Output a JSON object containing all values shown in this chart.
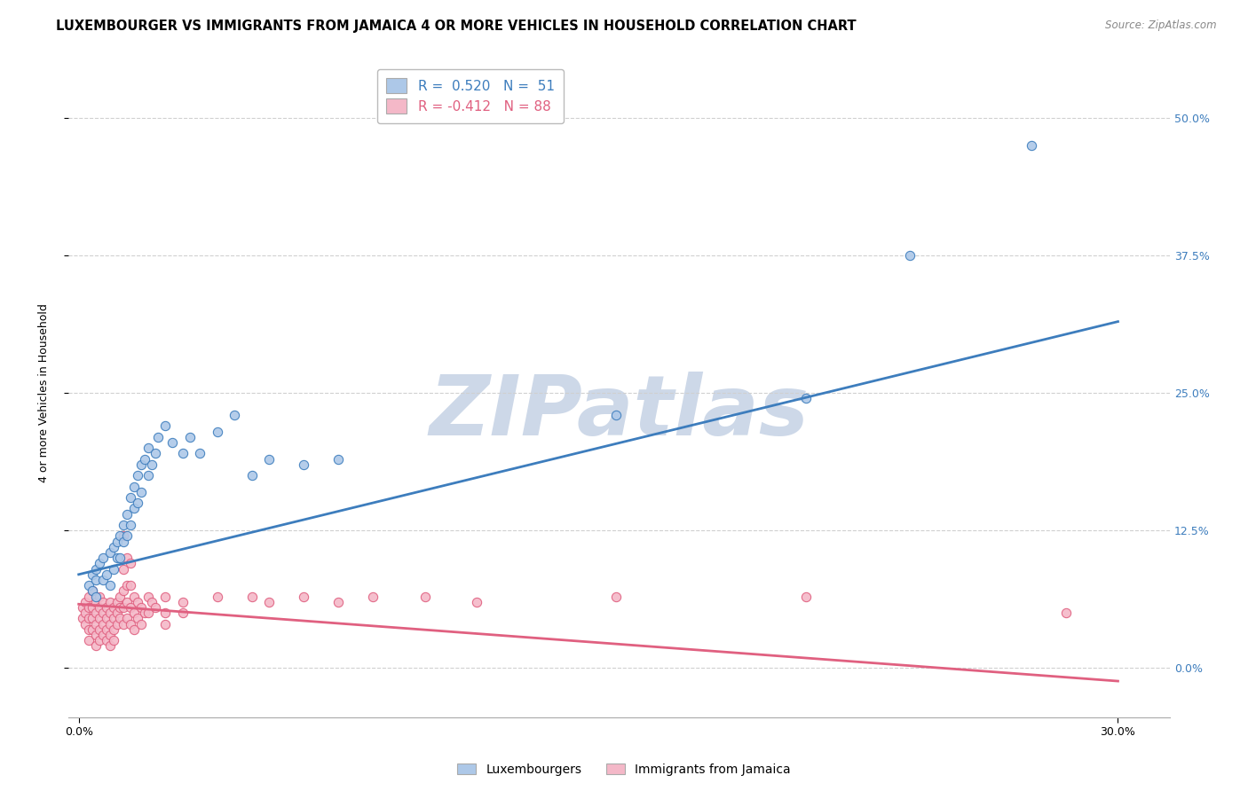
{
  "title": "LUXEMBOURGER VS IMMIGRANTS FROM JAMAICA 4 OR MORE VEHICLES IN HOUSEHOLD CORRELATION CHART",
  "source": "Source: ZipAtlas.com",
  "ylabel": "4 or more Vehicles in Household",
  "ytick_labels": [
    "0.0%",
    "12.5%",
    "25.0%",
    "37.5%",
    "50.0%"
  ],
  "ytick_values": [
    0.0,
    0.125,
    0.25,
    0.375,
    0.5
  ],
  "xtick_values": [
    0.0,
    0.3
  ],
  "xtick_labels": [
    "0.0%",
    "30.0%"
  ],
  "xlim": [
    -0.003,
    0.315
  ],
  "ylim": [
    -0.045,
    0.545
  ],
  "legend_entries": [
    {
      "label": "Luxembourgers",
      "R": "0.520",
      "N": "51",
      "color": "#adc8e8"
    },
    {
      "label": "Immigrants from Jamaica",
      "R": "-0.412",
      "N": "88",
      "color": "#f4b8c8"
    }
  ],
  "background_color": "#ffffff",
  "watermark_text": "ZIPatlas",
  "watermark_color": "#cdd8e8",
  "grid_color": "#d0d0d0",
  "title_fontsize": 10.5,
  "axis_label_fontsize": 9,
  "tick_fontsize": 9,
  "lux_scatter": [
    [
      0.003,
      0.075
    ],
    [
      0.004,
      0.07
    ],
    [
      0.004,
      0.085
    ],
    [
      0.005,
      0.065
    ],
    [
      0.005,
      0.08
    ],
    [
      0.005,
      0.09
    ],
    [
      0.006,
      0.095
    ],
    [
      0.007,
      0.1
    ],
    [
      0.007,
      0.08
    ],
    [
      0.008,
      0.085
    ],
    [
      0.009,
      0.105
    ],
    [
      0.009,
      0.075
    ],
    [
      0.01,
      0.11
    ],
    [
      0.01,
      0.09
    ],
    [
      0.011,
      0.115
    ],
    [
      0.011,
      0.1
    ],
    [
      0.012,
      0.12
    ],
    [
      0.012,
      0.1
    ],
    [
      0.013,
      0.13
    ],
    [
      0.013,
      0.115
    ],
    [
      0.014,
      0.14
    ],
    [
      0.014,
      0.12
    ],
    [
      0.015,
      0.155
    ],
    [
      0.015,
      0.13
    ],
    [
      0.016,
      0.165
    ],
    [
      0.016,
      0.145
    ],
    [
      0.017,
      0.175
    ],
    [
      0.017,
      0.15
    ],
    [
      0.018,
      0.185
    ],
    [
      0.018,
      0.16
    ],
    [
      0.019,
      0.19
    ],
    [
      0.02,
      0.2
    ],
    [
      0.02,
      0.175
    ],
    [
      0.021,
      0.185
    ],
    [
      0.022,
      0.195
    ],
    [
      0.023,
      0.21
    ],
    [
      0.025,
      0.22
    ],
    [
      0.027,
      0.205
    ],
    [
      0.03,
      0.195
    ],
    [
      0.032,
      0.21
    ],
    [
      0.035,
      0.195
    ],
    [
      0.04,
      0.215
    ],
    [
      0.045,
      0.23
    ],
    [
      0.05,
      0.175
    ],
    [
      0.055,
      0.19
    ],
    [
      0.065,
      0.185
    ],
    [
      0.075,
      0.19
    ],
    [
      0.155,
      0.23
    ],
    [
      0.21,
      0.245
    ],
    [
      0.24,
      0.375
    ],
    [
      0.275,
      0.475
    ]
  ],
  "jam_scatter": [
    [
      0.001,
      0.055
    ],
    [
      0.001,
      0.045
    ],
    [
      0.002,
      0.06
    ],
    [
      0.002,
      0.05
    ],
    [
      0.002,
      0.04
    ],
    [
      0.003,
      0.065
    ],
    [
      0.003,
      0.055
    ],
    [
      0.003,
      0.045
    ],
    [
      0.003,
      0.035
    ],
    [
      0.003,
      0.025
    ],
    [
      0.004,
      0.07
    ],
    [
      0.004,
      0.055
    ],
    [
      0.004,
      0.045
    ],
    [
      0.004,
      0.035
    ],
    [
      0.005,
      0.06
    ],
    [
      0.005,
      0.05
    ],
    [
      0.005,
      0.04
    ],
    [
      0.005,
      0.03
    ],
    [
      0.005,
      0.02
    ],
    [
      0.006,
      0.065
    ],
    [
      0.006,
      0.055
    ],
    [
      0.006,
      0.045
    ],
    [
      0.006,
      0.035
    ],
    [
      0.006,
      0.025
    ],
    [
      0.007,
      0.06
    ],
    [
      0.007,
      0.05
    ],
    [
      0.007,
      0.04
    ],
    [
      0.007,
      0.03
    ],
    [
      0.008,
      0.055
    ],
    [
      0.008,
      0.045
    ],
    [
      0.008,
      0.035
    ],
    [
      0.008,
      0.025
    ],
    [
      0.009,
      0.06
    ],
    [
      0.009,
      0.05
    ],
    [
      0.009,
      0.04
    ],
    [
      0.009,
      0.03
    ],
    [
      0.009,
      0.02
    ],
    [
      0.01,
      0.055
    ],
    [
      0.01,
      0.045
    ],
    [
      0.01,
      0.035
    ],
    [
      0.01,
      0.025
    ],
    [
      0.011,
      0.06
    ],
    [
      0.011,
      0.05
    ],
    [
      0.011,
      0.04
    ],
    [
      0.012,
      0.065
    ],
    [
      0.012,
      0.055
    ],
    [
      0.012,
      0.045
    ],
    [
      0.013,
      0.12
    ],
    [
      0.013,
      0.09
    ],
    [
      0.013,
      0.07
    ],
    [
      0.013,
      0.055
    ],
    [
      0.013,
      0.04
    ],
    [
      0.014,
      0.1
    ],
    [
      0.014,
      0.075
    ],
    [
      0.014,
      0.06
    ],
    [
      0.014,
      0.045
    ],
    [
      0.015,
      0.095
    ],
    [
      0.015,
      0.075
    ],
    [
      0.015,
      0.055
    ],
    [
      0.015,
      0.04
    ],
    [
      0.016,
      0.065
    ],
    [
      0.016,
      0.05
    ],
    [
      0.016,
      0.035
    ],
    [
      0.017,
      0.06
    ],
    [
      0.017,
      0.045
    ],
    [
      0.018,
      0.055
    ],
    [
      0.018,
      0.04
    ],
    [
      0.019,
      0.05
    ],
    [
      0.02,
      0.065
    ],
    [
      0.02,
      0.05
    ],
    [
      0.021,
      0.06
    ],
    [
      0.022,
      0.055
    ],
    [
      0.025,
      0.065
    ],
    [
      0.025,
      0.05
    ],
    [
      0.025,
      0.04
    ],
    [
      0.03,
      0.06
    ],
    [
      0.03,
      0.05
    ],
    [
      0.04,
      0.065
    ],
    [
      0.05,
      0.065
    ],
    [
      0.055,
      0.06
    ],
    [
      0.065,
      0.065
    ],
    [
      0.075,
      0.06
    ],
    [
      0.085,
      0.065
    ],
    [
      0.1,
      0.065
    ],
    [
      0.115,
      0.06
    ],
    [
      0.155,
      0.065
    ],
    [
      0.21,
      0.065
    ],
    [
      0.285,
      0.05
    ]
  ],
  "lux_line_color": "#3d7dbd",
  "jam_line_color": "#e06080",
  "lux_dot_color": "#adc8e8",
  "jam_dot_color": "#f4b8c8",
  "lux_dot_edge": "#3d7dbd",
  "jam_dot_edge": "#e06080",
  "lux_line": {
    "x0": 0.0,
    "y0": 0.085,
    "x1": 0.3,
    "y1": 0.315
  },
  "jam_line": {
    "x0": 0.0,
    "y0": 0.058,
    "x1": 0.3,
    "y1": -0.012
  }
}
